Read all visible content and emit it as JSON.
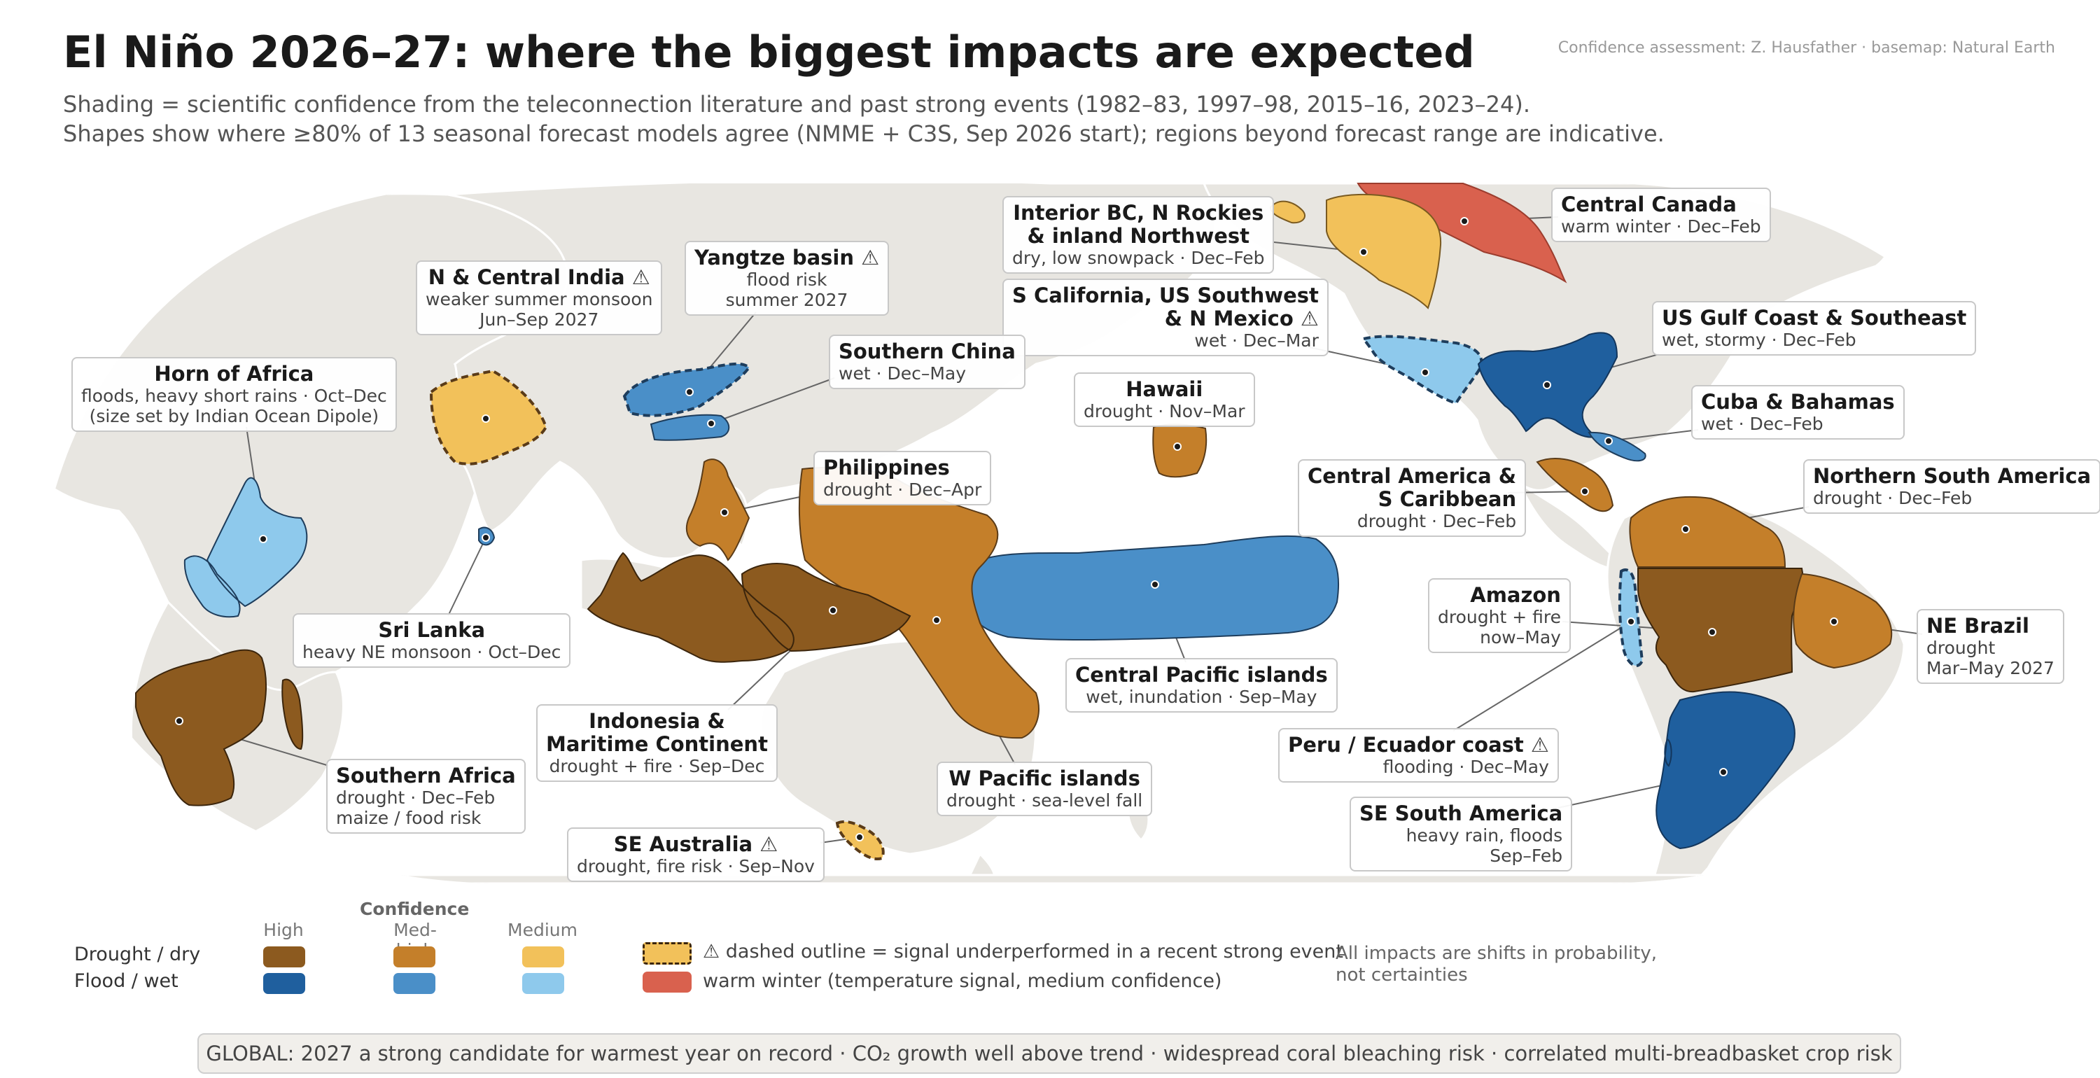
{
  "title": "El Niño 2026–27: where the biggest impacts are expected",
  "credit": "Confidence assessment: Z. Hausfather · basemap: Natural Earth",
  "subtitle": [
    "Shading = scientific confidence from the teleconnection literature and past strong events (1982–83, 1997–98, 2015–16, 2023–24).",
    "Shapes show where ≥80% of 13 seasonal forecast models agree (NMME + C3S, Sep 2026 start); regions beyond forecast range are indicative."
  ],
  "colors": {
    "land": "#e8e6e1",
    "drought_high": "#8c5a1f",
    "drought_medhigh": "#c47f2a",
    "drought_medium": "#f2c15a",
    "flood_high": "#1f5f9e",
    "flood_medhigh": "#4a8fc8",
    "flood_medium": "#8ec9ec",
    "warm_winter": "#d9614e"
  },
  "regions": [
    {
      "name": "Central Canada",
      "details": [
        "warm winter · Dec–Feb"
      ],
      "warning": false
    },
    {
      "name": "Interior BC, N Rockies & inland Northwest",
      "name_lines": [
        "Interior BC, N Rockies",
        "& inland Northwest"
      ],
      "details": [
        "dry, low snowpack · Dec–Feb"
      ],
      "warning": false
    },
    {
      "name": "N & Central India",
      "details": [
        "weaker summer monsoon",
        "Jun–Sep 2027"
      ],
      "warning": true
    },
    {
      "name": "Yangtze basin",
      "details": [
        "flood risk",
        "summer 2027"
      ],
      "warning": true
    },
    {
      "name": "S California, US Southwest & N Mexico",
      "name_lines": [
        "S California, US Southwest",
        "& N Mexico"
      ],
      "details": [
        "wet · Dec–Mar"
      ],
      "warning": true
    },
    {
      "name": "US Gulf Coast & Southeast",
      "details": [
        "wet, stormy · Dec–Feb"
      ],
      "warning": false
    },
    {
      "name": "Southern China",
      "details": [
        "wet · Dec–May"
      ],
      "warning": false
    },
    {
      "name": "Horn of Africa",
      "details": [
        "floods, heavy short rains · Oct–Dec",
        "(size set by Indian Ocean Dipole)"
      ],
      "warning": false
    },
    {
      "name": "Hawaii",
      "details": [
        "drought · Nov–Mar"
      ],
      "warning": false
    },
    {
      "name": "Cuba & Bahamas",
      "details": [
        "wet · Dec–Feb"
      ],
      "warning": false
    },
    {
      "name": "Philippines",
      "details": [
        "drought · Dec–Apr"
      ],
      "warning": false
    },
    {
      "name": "Central America & S Caribbean",
      "name_lines": [
        "Central America &",
        "S Caribbean"
      ],
      "details": [
        "drought · Dec–Feb"
      ],
      "warning": false
    },
    {
      "name": "Northern South America",
      "details": [
        "drought · Dec–Feb"
      ],
      "warning": false
    },
    {
      "name": "Amazon",
      "details": [
        "drought + fire",
        "now–May"
      ],
      "warning": false
    },
    {
      "name": "NE Brazil",
      "details": [
        "drought",
        "Mar–May 2027"
      ],
      "warning": false
    },
    {
      "name": "Sri Lanka",
      "details": [
        "heavy NE monsoon · Oct–Dec"
      ],
      "warning": false
    },
    {
      "name": "Central Pacific islands",
      "details": [
        "wet, inundation · Sep–May"
      ],
      "warning": false
    },
    {
      "name": "Indonesia & Maritime Continent",
      "name_lines": [
        "Indonesia &",
        "Maritime Continent"
      ],
      "details": [
        "drought + fire · Sep–Dec"
      ],
      "warning": false
    },
    {
      "name": "Peru / Ecuador coast",
      "details": [
        "flooding · Dec–May"
      ],
      "warning": true
    },
    {
      "name": "Southern Africa",
      "details": [
        "drought · Dec–Feb",
        "maize / food risk"
      ],
      "warning": false
    },
    {
      "name": "W Pacific islands",
      "details": [
        "drought · sea-level fall"
      ],
      "warning": false
    },
    {
      "name": "SE South America",
      "details": [
        "heavy rain, floods",
        "Sep–Feb"
      ],
      "warning": false
    },
    {
      "name": "SE Australia",
      "details": [
        "drought, fire risk · Sep–Nov"
      ],
      "warning": true
    }
  ],
  "legend": {
    "confidence_title": "Confidence",
    "levels": [
      "High",
      "Med-high",
      "Medium"
    ],
    "rows": [
      "Drought / dry",
      "Flood / wet"
    ],
    "dashed_note": "⚠  dashed outline = signal underperformed in a recent strong event",
    "warm_note": "warm winter (temperature signal, medium confidence)"
  },
  "note": "All impacts are shifts in probability,\nnot certainties",
  "global": "GLOBAL:  2027 a strong candidate for warmest year on record  ·  CO₂ growth well above trend  ·  widespread coral bleaching risk  ·  correlated multi-breadbasket crop risk"
}
